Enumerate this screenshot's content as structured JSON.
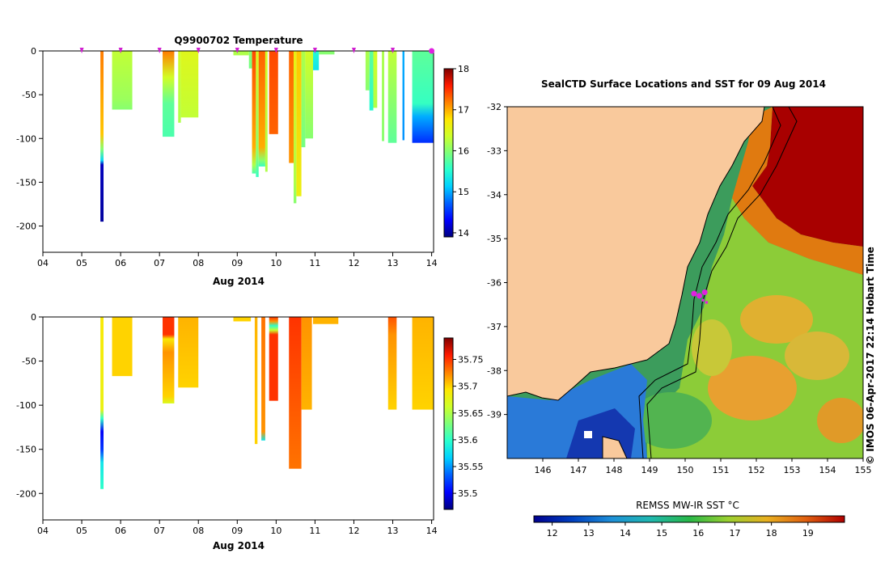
{
  "chart_data": [
    {
      "type": "heatmap",
      "title": "Q9900702  Temperature",
      "xlabel": "Aug 2014",
      "ylabel": "",
      "x_ticks": [
        "04",
        "05",
        "06",
        "07",
        "08",
        "09",
        "10",
        "11",
        "12",
        "13",
        "14"
      ],
      "y_ticks": [
        0,
        -50,
        -100,
        -150,
        -200
      ],
      "xlim": [
        4,
        14.05
      ],
      "ylim": [
        -230,
        0
      ],
      "colorbar": {
        "ticks": [
          18,
          17,
          16,
          15,
          14
        ],
        "range": [
          13.9,
          18.0
        ]
      },
      "marker_days": [
        5.0,
        6.0,
        7.0,
        8.0,
        9.0,
        10.0,
        11.0,
        12.0,
        13.0,
        14.0
      ],
      "profiles": [
        {
          "x0": 5.48,
          "x1": 5.56,
          "depth": -195,
          "stops": [
            [
              0,
              17.2
            ],
            [
              -95,
              16.9
            ],
            [
              -112,
              16.0
            ],
            [
              -125,
              15.2
            ],
            [
              -130,
              14.1
            ],
            [
              -195,
              14.0
            ]
          ]
        },
        {
          "x0": 5.78,
          "x1": 6.3,
          "depth": -67,
          "stops": [
            [
              0,
              16.3
            ],
            [
              -55,
              16.1
            ],
            [
              -67,
              16.0
            ]
          ]
        },
        {
          "x0": 7.08,
          "x1": 7.38,
          "depth": -98,
          "stops": [
            [
              0,
              17.2
            ],
            [
              -30,
              16.4
            ],
            [
              -60,
              15.8
            ],
            [
              -98,
              15.7
            ]
          ]
        },
        {
          "x0": 7.48,
          "x1": 7.55,
          "depth": -82,
          "stops": [
            [
              0,
              16.4
            ],
            [
              -82,
              16.2
            ]
          ]
        },
        {
          "x0": 7.55,
          "x1": 8.0,
          "depth": -76,
          "stops": [
            [
              0,
              16.5
            ],
            [
              -76,
              16.3
            ]
          ]
        },
        {
          "x0": 8.9,
          "x1": 9.3,
          "depth": -5,
          "stops": [
            [
              0,
              16.2
            ],
            [
              -5,
              16.2
            ]
          ]
        },
        {
          "x0": 9.3,
          "x1": 9.38,
          "depth": -20,
          "stops": [
            [
              0,
              16.0
            ],
            [
              -20,
              15.9
            ]
          ]
        },
        {
          "x0": 9.38,
          "x1": 9.48,
          "depth": -140,
          "stops": [
            [
              0,
              17.4
            ],
            [
              -110,
              17.0
            ],
            [
              -130,
              16.2
            ],
            [
              -140,
              15.7
            ]
          ]
        },
        {
          "x0": 9.48,
          "x1": 9.55,
          "depth": -144,
          "stops": [
            [
              0,
              16.5
            ],
            [
              -120,
              16.0
            ],
            [
              -144,
              15.6
            ]
          ]
        },
        {
          "x0": 9.55,
          "x1": 9.72,
          "depth": -132,
          "stops": [
            [
              0,
              17.3
            ],
            [
              -110,
              17.0
            ],
            [
              -125,
              16.0
            ],
            [
              -132,
              15.6
            ]
          ]
        },
        {
          "x0": 9.72,
          "x1": 9.78,
          "depth": -138,
          "stops": [
            [
              0,
              16.4
            ],
            [
              -138,
              16.2
            ]
          ]
        },
        {
          "x0": 9.82,
          "x1": 10.05,
          "depth": -95,
          "stops": [
            [
              0,
              17.4
            ],
            [
              -95,
              17.3
            ]
          ]
        },
        {
          "x0": 10.33,
          "x1": 10.45,
          "depth": -128,
          "stops": [
            [
              0,
              17.3
            ],
            [
              -128,
              17.1
            ]
          ]
        },
        {
          "x0": 10.45,
          "x1": 10.52,
          "depth": -174,
          "stops": [
            [
              0,
              16.6
            ],
            [
              -150,
              16.2
            ],
            [
              -174,
              16.0
            ]
          ]
        },
        {
          "x0": 10.52,
          "x1": 10.65,
          "depth": -166,
          "stops": [
            [
              0,
              16.9
            ],
            [
              -166,
              16.6
            ]
          ]
        },
        {
          "x0": 10.65,
          "x1": 10.75,
          "depth": -110,
          "stops": [
            [
              0,
              16.2
            ],
            [
              -110,
              15.9
            ]
          ]
        },
        {
          "x0": 10.75,
          "x1": 10.95,
          "depth": -100,
          "stops": [
            [
              0,
              16.4
            ],
            [
              -100,
              16.0
            ]
          ]
        },
        {
          "x0": 10.95,
          "x1": 11.1,
          "depth": -22,
          "stops": [
            [
              0,
              15.5
            ],
            [
              -22,
              15.3
            ]
          ]
        },
        {
          "x0": 11.1,
          "x1": 11.5,
          "depth": -4,
          "stops": [
            [
              0,
              16.0
            ],
            [
              -4,
              16.0
            ]
          ]
        },
        {
          "x0": 12.3,
          "x1": 12.4,
          "depth": -45,
          "stops": [
            [
              0,
              16.2
            ],
            [
              -45,
              16.0
            ]
          ]
        },
        {
          "x0": 12.4,
          "x1": 12.5,
          "depth": -68,
          "stops": [
            [
              0,
              15.8
            ],
            [
              -68,
              15.5
            ]
          ]
        },
        {
          "x0": 12.5,
          "x1": 12.6,
          "depth": -65,
          "stops": [
            [
              0,
              16.4
            ],
            [
              -65,
              16.2
            ]
          ]
        },
        {
          "x0": 12.72,
          "x1": 12.78,
          "depth": -103,
          "stops": [
            [
              0,
              16.2
            ],
            [
              -103,
              16.0
            ]
          ]
        },
        {
          "x0": 12.88,
          "x1": 13.1,
          "depth": -105,
          "stops": [
            [
              0,
              16.3
            ],
            [
              -105,
              15.8
            ]
          ]
        },
        {
          "x0": 13.25,
          "x1": 13.3,
          "depth": -102,
          "stops": [
            [
              0,
              15.0
            ],
            [
              -102,
              14.9
            ]
          ]
        },
        {
          "x0": 13.5,
          "x1": 14.05,
          "depth": -105,
          "stops": [
            [
              0,
              15.8
            ],
            [
              -60,
              15.6
            ],
            [
              -75,
              15.0
            ],
            [
              -105,
              14.5
            ]
          ]
        }
      ]
    },
    {
      "type": "heatmap",
      "title": "",
      "xlabel": "Aug 2014",
      "ylabel": "",
      "x_ticks": [
        "04",
        "05",
        "06",
        "07",
        "08",
        "09",
        "10",
        "11",
        "12",
        "13",
        "14"
      ],
      "y_ticks": [
        0,
        -50,
        -100,
        -150,
        -200
      ],
      "xlim": [
        4,
        14.05
      ],
      "ylim": [
        -230,
        0
      ],
      "colorbar": {
        "ticks": [
          35.75,
          35.7,
          35.65,
          35.6,
          35.55,
          35.5
        ],
        "range": [
          35.47,
          35.79
        ]
      },
      "profiles": [
        {
          "x0": 5.48,
          "x1": 5.56,
          "depth": -195,
          "stops": [
            [
              0,
              35.69
            ],
            [
              -105,
              35.68
            ],
            [
              -115,
              35.6
            ],
            [
              -130,
              35.5
            ],
            [
              -150,
              35.52
            ],
            [
              -165,
              35.58
            ],
            [
              -195,
              35.6
            ]
          ]
        },
        {
          "x0": 5.78,
          "x1": 6.3,
          "depth": -67,
          "stops": [
            [
              0,
              35.7
            ],
            [
              -67,
              35.7
            ]
          ]
        },
        {
          "x0": 7.08,
          "x1": 7.38,
          "depth": -98,
          "stops": [
            [
              0,
              35.75
            ],
            [
              -20,
              35.75
            ],
            [
              -25,
              35.69
            ],
            [
              -40,
              35.72
            ],
            [
              -90,
              35.7
            ],
            [
              -98,
              35.67
            ]
          ]
        },
        {
          "x0": 7.48,
          "x1": 8.0,
          "depth": -80,
          "stops": [
            [
              0,
              35.71
            ],
            [
              -80,
              35.7
            ]
          ]
        },
        {
          "x0": 8.9,
          "x1": 9.35,
          "depth": -5,
          "stops": [
            [
              0,
              35.7
            ],
            [
              -5,
              35.7
            ]
          ]
        },
        {
          "x0": 9.45,
          "x1": 9.52,
          "depth": -144,
          "stops": [
            [
              0,
              35.71
            ],
            [
              -144,
              35.7
            ]
          ]
        },
        {
          "x0": 9.62,
          "x1": 9.72,
          "depth": -140,
          "stops": [
            [
              0,
              35.73
            ],
            [
              -130,
              35.72
            ],
            [
              -140,
              35.58
            ]
          ]
        },
        {
          "x0": 9.82,
          "x1": 10.05,
          "depth": -95,
          "stops": [
            [
              0,
              35.75
            ],
            [
              -5,
              35.72
            ],
            [
              -10,
              35.6
            ],
            [
              -15,
              35.66
            ],
            [
              -20,
              35.75
            ],
            [
              -95,
              35.75
            ]
          ]
        },
        {
          "x0": 10.33,
          "x1": 10.65,
          "depth": -172,
          "stops": [
            [
              0,
              35.75
            ],
            [
              -172,
              35.73
            ]
          ]
        },
        {
          "x0": 10.65,
          "x1": 10.92,
          "depth": -105,
          "stops": [
            [
              0,
              35.72
            ],
            [
              -105,
              35.71
            ]
          ]
        },
        {
          "x0": 10.95,
          "x1": 11.6,
          "depth": -8,
          "stops": [
            [
              0,
              35.71
            ],
            [
              -8,
              35.71
            ]
          ]
        },
        {
          "x0": 12.88,
          "x1": 13.1,
          "depth": -105,
          "stops": [
            [
              0,
              35.74
            ],
            [
              -20,
              35.72
            ],
            [
              -105,
              35.7
            ]
          ]
        },
        {
          "x0": 13.5,
          "x1": 14.05,
          "depth": -105,
          "stops": [
            [
              0,
              35.71
            ],
            [
              -105,
              35.7
            ]
          ]
        }
      ]
    },
    {
      "type": "heatmap",
      "title": "SealCTD Surface Locations and SST for 09 Aug 2014",
      "xlabel": "",
      "ylabel": "",
      "x_ticks": [
        "146",
        "147",
        "148",
        "149",
        "150",
        "151",
        "152",
        "153",
        "154",
        "155"
      ],
      "y_ticks": [
        "-32",
        "-33",
        "-34",
        "-35",
        "-36",
        "-37",
        "-38",
        "-39"
      ],
      "xlim": [
        145,
        155
      ],
      "ylim": [
        -40,
        -32
      ],
      "colorbar": {
        "label": "REMSS MW-IR SST °C",
        "ticks": [
          12,
          13,
          14,
          15,
          16,
          17,
          18,
          19
        ],
        "range": [
          11.5,
          20.0
        ]
      },
      "locations": [
        {
          "lon": 150.25,
          "lat": -36.25
        },
        {
          "lon": 150.4,
          "lat": -36.3
        },
        {
          "lon": 150.55,
          "lat": -36.22
        },
        {
          "lon": 150.5,
          "lat": -36.4
        },
        {
          "lon": 150.6,
          "lat": -36.45
        }
      ],
      "credit": "©  IMOS 06-Apr-2017 22:14 Hobart Time"
    }
  ]
}
